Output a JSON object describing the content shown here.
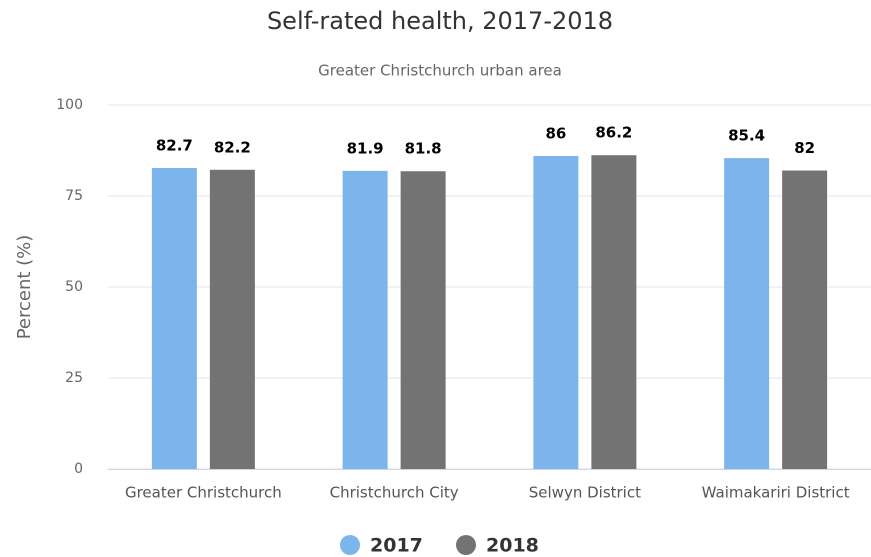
{
  "chart_data": {
    "type": "bar",
    "title": "Self-rated health, 2017-2018",
    "subtitle": "Greater Christchurch urban area",
    "y_label": "Percent (%)",
    "categories": [
      "Greater Christchurch",
      "Christchurch City",
      "Selwyn District",
      "Waimakariri District"
    ],
    "series": [
      {
        "name": "2017",
        "color": "#7cb5ec",
        "values": [
          82.7,
          81.9,
          86,
          85.4
        ]
      },
      {
        "name": "2018",
        "color": "#737373",
        "values": [
          82.2,
          81.8,
          86.2,
          82
        ]
      }
    ],
    "ylim": [
      0,
      100
    ],
    "yticks": [
      0,
      25,
      50,
      75,
      100
    ],
    "grid": true,
    "legend": "bottom"
  }
}
